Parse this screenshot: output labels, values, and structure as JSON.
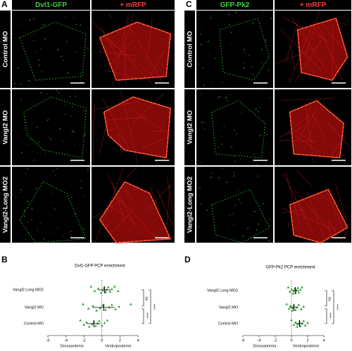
{
  "panels": {
    "A": {
      "letter": "A",
      "columns": [
        "Dvl1-GFP",
        "+ mRFP"
      ],
      "rows": [
        "Control MO",
        "Vangl2 MO",
        "Vangl2-Long MO2"
      ]
    },
    "C": {
      "letter": "C",
      "columns": [
        "GFP-Pk2",
        "+ mRFP"
      ],
      "rows": [
        "Control MO",
        "Vangl2 MO",
        "Vangl2-Long MO2"
      ]
    }
  },
  "chart_data": [
    {
      "type": "dotplot",
      "letter": "B",
      "title": "Dvl1-GFP PCP enrichment",
      "categories": [
        "Vangl2 Long MO2",
        "Vangl2 MO",
        "Control MO"
      ],
      "color": "#2e9b2e",
      "points": [
        [
          -1.2,
          -0.8,
          -0.4,
          -0.1,
          0.1,
          0.2,
          0.4,
          0.5,
          0.7,
          0.9,
          1.1,
          1.4,
          1.8
        ],
        [
          -2.1,
          -1.5,
          -1.0,
          -0.6,
          -0.2,
          0.1,
          0.4,
          0.8,
          1.1,
          1.5,
          1.9,
          3.2
        ],
        [
          -2.4,
          -2.0,
          -1.7,
          -1.4,
          -1.1,
          -0.9,
          -0.7,
          -0.5,
          -0.3,
          0.0,
          0.3,
          0.6
        ]
      ],
      "means": [
        0.3,
        0.2,
        -0.9
      ],
      "sd": [
        0.7,
        1.2,
        0.8
      ],
      "xlim": [
        -6,
        4
      ],
      "xticks": [
        -6,
        -4,
        -2,
        0,
        2,
        4
      ],
      "xlabel_left": "Dorsoanterior",
      "xlabel_right": "Ventroposterior",
      "significance": [
        "ns",
        "****",
        "****"
      ]
    },
    {
      "type": "dotplot",
      "letter": "D",
      "title": "GFP-Pk2 PCP enrichment",
      "categories": [
        "Vangl2 Long MO2",
        "Vangl2 MO",
        "Control MO"
      ],
      "color": "#2e9b2e",
      "points": [
        [
          -0.4,
          -0.2,
          0.0,
          0.2,
          0.3,
          0.4,
          0.5,
          0.6,
          0.8,
          0.9,
          1.1,
          1.3
        ],
        [
          -0.6,
          -0.3,
          -0.1,
          0.1,
          0.2,
          0.3,
          0.5,
          0.7,
          0.9,
          1.2,
          1.5
        ],
        [
          0.0,
          0.3,
          0.5,
          0.7,
          0.8,
          1.0,
          1.1,
          1.3,
          1.5,
          1.7,
          2.0
        ]
      ],
      "means": [
        0.5,
        0.3,
        1.0
      ],
      "sd": [
        0.4,
        0.5,
        0.5
      ],
      "xlim": [
        -6,
        4
      ],
      "xticks": [
        -6,
        -4,
        -2,
        0,
        2,
        4
      ],
      "xlabel_left": "Dorsoanterior",
      "xlabel_right": "Ventroposterior",
      "significance": [
        "ns",
        "****",
        "****"
      ]
    }
  ]
}
